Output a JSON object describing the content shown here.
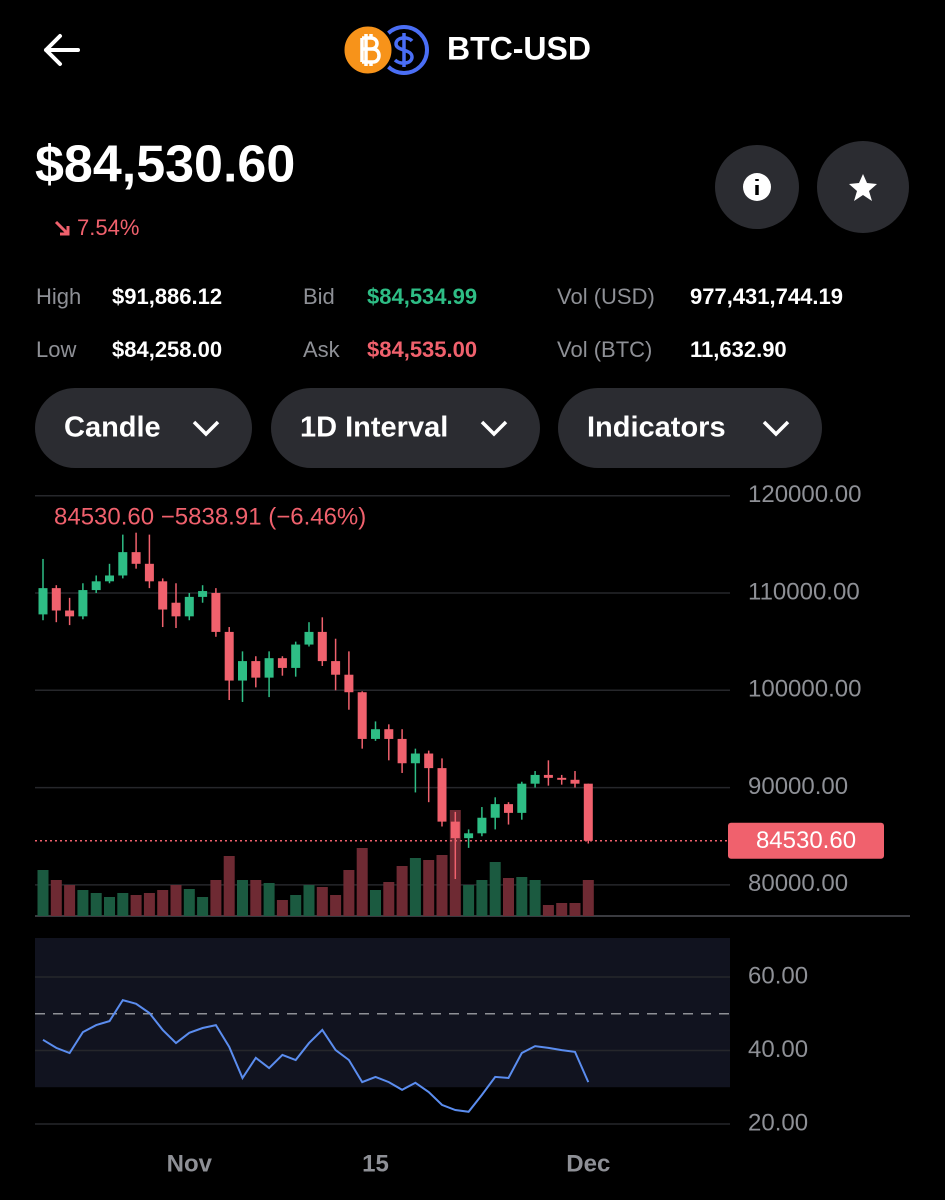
{
  "header": {
    "title": "BTC-USD"
  },
  "price": {
    "value": "$84,530.60",
    "change": "7.54%",
    "change_color": "#f0616d"
  },
  "stats": [
    {
      "label": "High",
      "value": "$91,886.12",
      "color": "#ffffff"
    },
    {
      "label": "Low",
      "value": "$84,258.00",
      "color": "#ffffff"
    },
    {
      "label": "Bid",
      "value": "$84,534.99",
      "color": "#2ebd85"
    },
    {
      "label": "Ask",
      "value": "$84,535.00",
      "color": "#f0616d"
    },
    {
      "label": "Vol (USD)",
      "value": "977,431,744.19",
      "color": "#ffffff"
    },
    {
      "label": "Vol (BTC)",
      "value": "11,632.90",
      "color": "#ffffff"
    }
  ],
  "controls": [
    "Candle",
    "1D Interval",
    "Indicators"
  ],
  "chart_data": [
    {
      "type": "candlestick",
      "annotation": "84530.60 −5838.91 (−6.46%)",
      "categories": [
        null,
        null,
        null,
        null,
        null,
        null,
        null,
        null,
        null,
        null,
        null,
        "Nov",
        null,
        null,
        null,
        null,
        null,
        null,
        null,
        null,
        null,
        null,
        null,
        null,
        null,
        "15",
        null,
        null,
        null,
        null,
        null,
        null,
        null,
        null,
        null,
        null,
        null,
        null,
        null,
        null,
        null,
        "Dec"
      ],
      "open": [
        107800,
        110500,
        108200,
        107600,
        110300,
        111200,
        111800,
        114200,
        113000,
        111200,
        109000,
        107600,
        109600,
        110000,
        106000,
        101000,
        103000,
        101300,
        103300,
        102300,
        104700,
        106000,
        103000,
        101600,
        99800,
        95000,
        96000,
        95000,
        92500,
        93500,
        92000,
        86500,
        84800,
        85300,
        86900,
        88300,
        87400,
        90400,
        91300,
        91000,
        90800,
        90400
      ],
      "high": [
        113500,
        110800,
        109500,
        111000,
        111800,
        113000,
        116000,
        116200,
        116000,
        111500,
        111000,
        110000,
        110800,
        110500,
        106500,
        104000,
        103500,
        104000,
        103500,
        105000,
        107000,
        107500,
        105300,
        104000,
        99900,
        96800,
        96500,
        96000,
        94000,
        93800,
        93000,
        87500,
        85700,
        88000,
        89000,
        88500,
        90600,
        91700,
        92800,
        91300,
        91700,
        90400
      ],
      "low": [
        107200,
        107000,
        106700,
        107300,
        110000,
        111000,
        111500,
        112500,
        110500,
        106500,
        106400,
        107200,
        109000,
        105500,
        99000,
        98800,
        100300,
        99300,
        101500,
        101400,
        104500,
        102500,
        100000,
        98000,
        94000,
        94800,
        92800,
        91500,
        89500,
        88500,
        86000,
        80600,
        83800,
        85000,
        85700,
        86200,
        86700,
        90000,
        90200,
        90300,
        90000,
        84250
      ],
      "close": [
        110500,
        108200,
        107600,
        110300,
        111200,
        111800,
        114200,
        113000,
        111200,
        108300,
        107600,
        109600,
        110200,
        106000,
        101000,
        103000,
        101300,
        103300,
        102300,
        104700,
        106000,
        103000,
        101600,
        99800,
        95000,
        96000,
        95000,
        92500,
        93500,
        92000,
        86500,
        84800,
        85300,
        86900,
        88300,
        87400,
        90400,
        91300,
        91000,
        90800,
        90400,
        84530.6
      ],
      "volume": [
        46,
        36,
        31,
        26,
        23,
        19,
        23,
        21,
        23,
        26,
        31,
        27,
        19,
        36,
        60,
        36,
        36,
        33,
        16,
        21,
        31,
        29,
        21,
        46,
        68,
        26,
        34,
        50,
        58,
        56,
        61,
        106,
        31,
        36,
        54,
        38,
        39,
        36,
        11,
        13,
        13,
        36
      ],
      "volume_ylim": [
        0,
        110
      ],
      "up_color": "#2ebd85",
      "down_color": "#f0616d",
      "volume_up_color": "#1b5a40",
      "volume_down_color": "#6e2a33",
      "ylim": [
        76800,
        121100
      ],
      "yticks": [
        {
          "value": 120000,
          "label": "120000.00"
        },
        {
          "value": 110000,
          "label": "110000.00"
        },
        {
          "value": 100000,
          "label": "100000.00"
        },
        {
          "value": 90000,
          "label": "90000.00"
        },
        {
          "value": 80000,
          "label": "80000.00"
        }
      ],
      "last_price": {
        "value": 84530.6,
        "label": "84530.60"
      },
      "grid": true
    },
    {
      "type": "line",
      "series": [
        {
          "color": "#5b8def",
          "values": [
            42.9,
            40.7,
            39.3,
            45,
            46.9,
            48,
            53.7,
            52.7,
            50.2,
            45.6,
            42,
            44.8,
            46.1,
            46.9,
            41,
            32.5,
            38,
            35.2,
            38.8,
            37.4,
            42,
            45.6,
            40.1,
            37.4,
            31.4,
            32.8,
            31.4,
            29.3,
            31.2,
            28.7,
            25.2,
            23.8,
            23.3,
            27.9,
            32.8,
            32.5,
            39.3,
            41.2,
            40.7,
            40.1,
            39.6,
            31.4
          ]
        }
      ],
      "ylim": [
        17,
        70.6
      ],
      "band": [
        30,
        70.6
      ],
      "midline": 50,
      "yticks": [
        {
          "value": 60,
          "label": "60.00"
        },
        {
          "value": 40,
          "label": "40.00"
        },
        {
          "value": 20,
          "label": "20.00"
        }
      ],
      "grid": true
    }
  ]
}
